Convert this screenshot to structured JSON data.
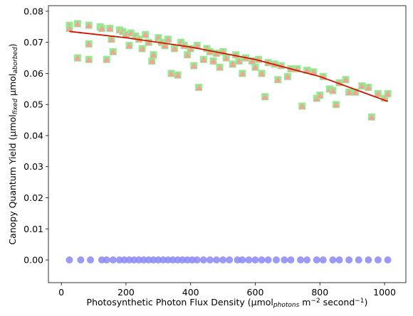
{
  "chart_data": {
    "type": "scatter",
    "xlabel": [
      {
        "text": "Photosynthetic Photon Flux Density (μmol",
        "style": "normal"
      },
      {
        "text": "photons",
        "style": "sub"
      },
      {
        "text": " m",
        "style": "normal"
      },
      {
        "text": "−2",
        "style": "sup"
      },
      {
        "text": " second",
        "style": "normal"
      },
      {
        "text": "−1",
        "style": "sup"
      },
      {
        "text": ")",
        "style": "normal"
      }
    ],
    "ylabel": [
      {
        "text": "Canopy Quantum Yield (μmol",
        "style": "normal"
      },
      {
        "text": "fixed",
        "style": "sub"
      },
      {
        "text": " μmol",
        "style": "normal"
      },
      {
        "text": "aborbed",
        "style": "sub"
      },
      {
        "text": ")",
        "style": "normal"
      }
    ],
    "xlim": [
      -40,
      1066
    ],
    "ylim": [
      -0.0073,
      0.0818
    ],
    "xticks": [
      0,
      200,
      400,
      600,
      800,
      1000
    ],
    "yticks": [
      {
        "value": 0,
        "label": "0.00"
      },
      {
        "value": 0.01,
        "label": "0.01"
      },
      {
        "value": 0.02,
        "label": "0.02"
      },
      {
        "value": 0.03,
        "label": "0.03"
      },
      {
        "value": 0.04,
        "label": "0.04"
      },
      {
        "value": 0.05,
        "label": "0.05"
      },
      {
        "value": 0.06,
        "label": "0.06"
      },
      {
        "value": 0.07,
        "label": "0.07"
      },
      {
        "value": 0.08,
        "label": "0.08"
      }
    ],
    "series": [
      {
        "marker": "square+triangle",
        "colors": [
          "#90ee90",
          "#ff9999"
        ],
        "x": [
          25,
          25,
          50,
          50,
          85,
          85,
          85,
          120,
          125,
          140,
          150,
          155,
          160,
          180,
          190,
          200,
          210,
          215,
          230,
          240,
          250,
          260,
          270,
          280,
          285,
          300,
          310,
          320,
          330,
          340,
          350,
          360,
          370,
          380,
          390,
          400,
          410,
          420,
          425,
          440,
          450,
          460,
          470,
          480,
          490,
          500,
          510,
          530,
          540,
          550,
          560,
          570,
          590,
          600,
          610,
          620,
          630,
          640,
          660,
          670,
          680,
          700,
          710,
          730,
          745,
          760,
          780,
          790,
          800,
          810,
          830,
          840,
          850,
          860,
          880,
          890,
          910,
          930,
          950,
          960,
          980,
          1000,
          1010
        ],
        "values": [
          0.0755,
          0.0745,
          0.076,
          0.065,
          0.0755,
          0.0695,
          0.0645,
          0.075,
          0.0745,
          0.0645,
          0.0745,
          0.071,
          0.067,
          0.074,
          0.0735,
          0.0725,
          0.069,
          0.073,
          0.072,
          0.071,
          0.068,
          0.0725,
          0.07,
          0.064,
          0.066,
          0.0715,
          0.07,
          0.069,
          0.071,
          0.06,
          0.068,
          0.0595,
          0.07,
          0.069,
          0.066,
          0.068,
          0.0625,
          0.069,
          0.0555,
          0.0645,
          0.068,
          0.067,
          0.064,
          0.0665,
          0.062,
          0.067,
          0.065,
          0.063,
          0.066,
          0.064,
          0.06,
          0.065,
          0.064,
          0.062,
          0.0645,
          0.06,
          0.0525,
          0.0635,
          0.063,
          0.058,
          0.0625,
          0.059,
          0.0615,
          0.0615,
          0.0495,
          0.061,
          0.0605,
          0.052,
          0.053,
          0.059,
          0.055,
          0.0545,
          0.05,
          0.057,
          0.058,
          0.054,
          0.054,
          0.056,
          0.0555,
          0.046,
          0.0535,
          0.052,
          0.0535
        ]
      },
      {
        "marker": "line",
        "color": "#d41000",
        "x": [
          25,
          200,
          400,
          600,
          800,
          1010
        ],
        "values": [
          0.0735,
          0.0715,
          0.0685,
          0.0645,
          0.059,
          0.051
        ]
      },
      {
        "marker": "circle",
        "color": "#8a8af5",
        "x": [
          25,
          60,
          90,
          125,
          140,
          160,
          180,
          195,
          210,
          225,
          240,
          255,
          270,
          285,
          300,
          315,
          330,
          345,
          360,
          375,
          390,
          405,
          420,
          440,
          460,
          480,
          500,
          520,
          545,
          560,
          580,
          600,
          620,
          640,
          665,
          690,
          710,
          740,
          760,
          790,
          810,
          840,
          860,
          890,
          920,
          950,
          980,
          1010
        ],
        "values": [
          0,
          0,
          0,
          0,
          0,
          0,
          0,
          0,
          0,
          0,
          0,
          0,
          0,
          0,
          0,
          0,
          0,
          0,
          0,
          0,
          0,
          0,
          0,
          0,
          0,
          0,
          0,
          0,
          0,
          0,
          0,
          0,
          0,
          0,
          0,
          0,
          0,
          0,
          0,
          0,
          0,
          0,
          0,
          0,
          0,
          0,
          0,
          0
        ]
      }
    ]
  }
}
